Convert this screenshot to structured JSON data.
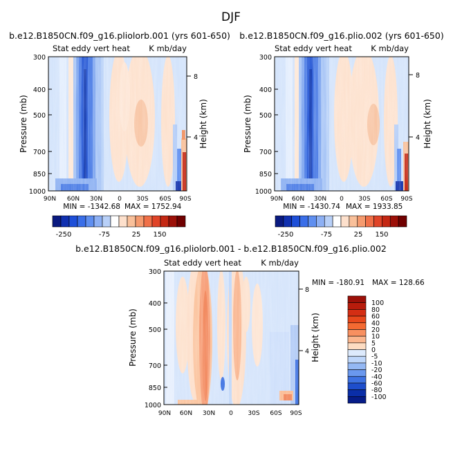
{
  "figure": {
    "title": "DJF"
  },
  "chart_data": [
    {
      "type": "heatmap",
      "title": "b.e12.B1850CN.f09_g16.pliolorb.001 (yrs 601-650)",
      "left_subtitle": "Stat eddy vert heat",
      "right_subtitle": "K mb/day",
      "ylabel": "Pressure (mb)",
      "ylabel_right": "Height (km)",
      "x_ticks": [
        "90N",
        "60N",
        "30N",
        "0",
        "30S",
        "60S",
        "90S"
      ],
      "y_ticks": [
        "300",
        "400",
        "500",
        "700",
        "850",
        "1000"
      ],
      "y_ticks_right": [
        "8",
        "4"
      ],
      "stats": {
        "min_label": "MIN = -1342.68",
        "max_label": "MAX = 1752.94",
        "min": -1342.68,
        "max": 1752.94
      },
      "colorbar_labels": [
        "-250",
        "-75",
        "25",
        "150"
      ],
      "colorbar_colors": [
        "#0a1a80",
        "#1030b0",
        "#1e4fd8",
        "#3a6ee8",
        "#5f8ff0",
        "#8db0f4",
        "#b8d0f8",
        "#ffffff",
        "#fde0cc",
        "#f9c09a",
        "#f59a6e",
        "#f07048",
        "#e04428",
        "#c42814",
        "#9c1008",
        "#700000"
      ]
    },
    {
      "type": "heatmap",
      "title": "b.e12.B1850CN.f09_g16.plio.002 (yrs 601-650)",
      "left_subtitle": "Stat eddy vert heat",
      "right_subtitle": "K mb/day",
      "ylabel": "Pressure (mb)",
      "ylabel_right": "Height (km)",
      "x_ticks": [
        "90N",
        "60N",
        "30N",
        "0",
        "30S",
        "60S",
        "90S"
      ],
      "y_ticks": [
        "300",
        "400",
        "500",
        "700",
        "850",
        "1000"
      ],
      "y_ticks_right": [
        "8",
        "4"
      ],
      "stats": {
        "min_label": "MIN = -1430.74",
        "max_label": "MAX = 1933.85",
        "min": -1430.74,
        "max": 1933.85
      },
      "colorbar_labels": [
        "-250",
        "-75",
        "25",
        "150"
      ],
      "colorbar_colors": [
        "#0a1a80",
        "#1030b0",
        "#1e4fd8",
        "#3a6ee8",
        "#5f8ff0",
        "#8db0f4",
        "#b8d0f8",
        "#ffffff",
        "#fde0cc",
        "#f9c09a",
        "#f59a6e",
        "#f07048",
        "#e04428",
        "#c42814",
        "#9c1008",
        "#700000"
      ]
    },
    {
      "type": "heatmap",
      "title": "b.e12.B1850CN.f09_g16.pliolorb.001 - b.e12.B1850CN.f09_g16.plio.002",
      "left_subtitle": "Stat eddy vert heat",
      "right_subtitle": "K mb/day",
      "ylabel": "Pressure (mb)",
      "ylabel_right": "Height (km)",
      "x_ticks": [
        "90N",
        "60N",
        "30N",
        "0",
        "30S",
        "60S",
        "90S"
      ],
      "y_ticks": [
        "300",
        "400",
        "500",
        "700",
        "850",
        "1000"
      ],
      "y_ticks_right": [
        "8",
        "4"
      ],
      "stats": {
        "min_label": "MIN = -180.91",
        "max_label": "MAX = 128.66",
        "min": -180.91,
        "max": 128.66
      },
      "colorbar_labels": [
        "100",
        "80",
        "60",
        "40",
        "20",
        "10",
        "5",
        "0",
        "-5",
        "-10",
        "-20",
        "-40",
        "-60",
        "-80",
        "-100"
      ],
      "colorbar_colors": [
        "#9c1008",
        "#b81c0c",
        "#d42e14",
        "#e8481c",
        "#f46a32",
        "#f89060",
        "#fbb68e",
        "#fddcc2",
        "#ddeafc",
        "#bed6fa",
        "#94b8f4",
        "#6a98ee",
        "#3e72e2",
        "#1e4ecc",
        "#0a2ea8",
        "#061c88"
      ]
    }
  ]
}
